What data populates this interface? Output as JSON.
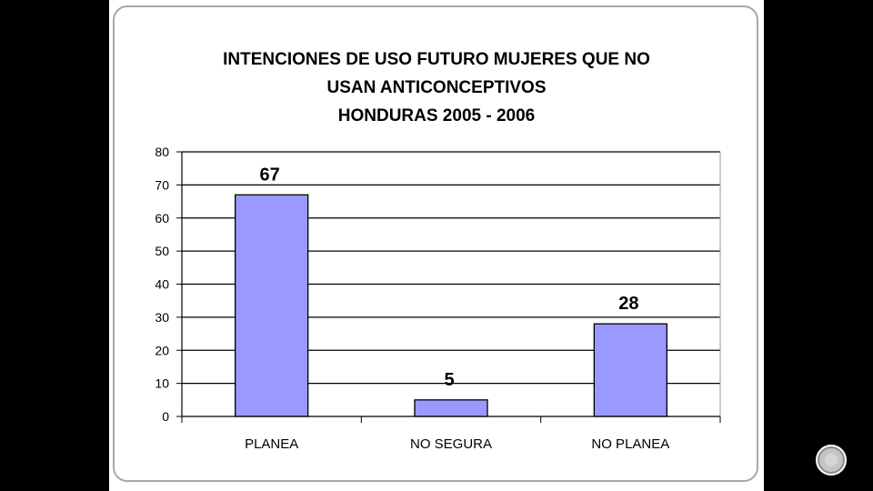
{
  "chart_data": {
    "type": "bar",
    "title_lines": [
      "INTENCIONES DE USO FUTURO MUJERES QUE NO",
      "USAN ANTICONCEPTIVOS",
      "HONDURAS 2005 - 2006"
    ],
    "categories": [
      "PLANEA",
      "NO SEGURA",
      "NO PLANEA"
    ],
    "values": [
      67,
      5,
      28
    ],
    "data_labels": [
      "67",
      "5",
      "28"
    ],
    "ylim": [
      0,
      80
    ],
    "yticks": [
      0,
      10,
      20,
      30,
      40,
      50,
      60,
      70,
      80
    ],
    "grid": true,
    "legend": "none",
    "bar_color": "#9999ff",
    "bar_border_color": "#000000",
    "gridline_color": "#000000"
  }
}
